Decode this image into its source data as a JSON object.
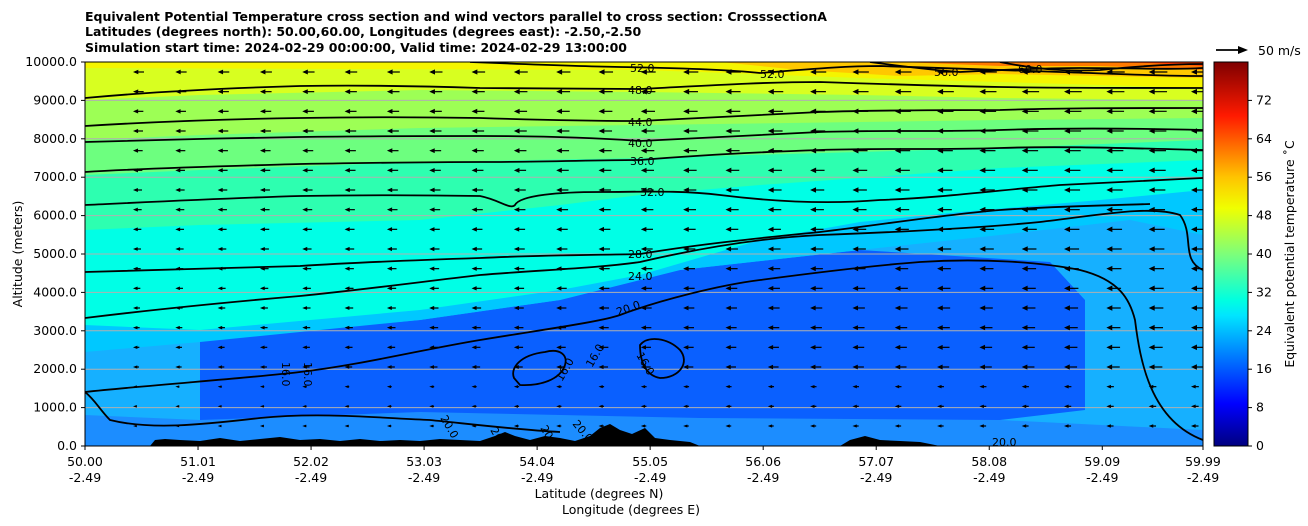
{
  "chart_data": {
    "type": "contour-cross-section",
    "title_lines": [
      "Equivalent Potential Temperature cross section and wind vectors parallel to cross section: CrosssectionA",
      "Latitudes (degrees north): 50.00,60.00, Longitudes (degrees east): -2.50,-2.50",
      "Simulation start time: 2024-02-29 00:00:00, Valid time: 2024-02-29 13:00:00"
    ],
    "xlabel_lat": "Latitude (degrees N)",
    "xlabel_lon": "Longitude (degrees E)",
    "ylabel": "Altitude (meters)",
    "xlim": [
      50.0,
      59.99
    ],
    "ylim": [
      0,
      10000
    ],
    "x_ticks": [
      {
        "lat": "50.00",
        "lon": "-2.49",
        "value": 50.0
      },
      {
        "lat": "51.01",
        "lon": "-2.49",
        "value": 51.01
      },
      {
        "lat": "52.02",
        "lon": "-2.49",
        "value": 52.02
      },
      {
        "lat": "53.03",
        "lon": "-2.49",
        "value": 53.03
      },
      {
        "lat": "54.04",
        "lon": "-2.49",
        "value": 54.04
      },
      {
        "lat": "55.05",
        "lon": "-2.49",
        "value": 55.05
      },
      {
        "lat": "56.06",
        "lon": "-2.49",
        "value": 56.06
      },
      {
        "lat": "57.07",
        "lon": "-2.49",
        "value": 57.07
      },
      {
        "lat": "58.08",
        "lon": "-2.49",
        "value": 58.08
      },
      {
        "lat": "59.09",
        "lon": "-2.49",
        "value": 59.09
      },
      {
        "lat": "59.99",
        "lon": "-2.49",
        "value": 59.99
      }
    ],
    "y_ticks": [
      "0.0",
      "1000.0",
      "2000.0",
      "3000.0",
      "4000.0",
      "5000.0",
      "6000.0",
      "7000.0",
      "8000.0",
      "9000.0",
      "10000.0"
    ],
    "grid": "horizontal",
    "colorbar": {
      "label": "Equivalent potential temperature ˚C",
      "range": [
        0,
        80
      ],
      "ticks": [
        "0",
        "8",
        "16",
        "24",
        "32",
        "40",
        "48",
        "56",
        "64",
        "72"
      ],
      "colormap": "jet"
    },
    "quiver_key": {
      "label": "50 m/s",
      "value": 50
    },
    "contours": [
      {
        "label": "16.0",
        "value": 16
      },
      {
        "label": "20.0",
        "value": 20
      },
      {
        "label": "24.0",
        "value": 24
      },
      {
        "label": "28.0",
        "value": 28
      },
      {
        "label": "32.0",
        "value": 32
      },
      {
        "label": "36.0",
        "value": 36
      },
      {
        "label": "40.0",
        "value": 40
      },
      {
        "label": "44.0",
        "value": 44
      },
      {
        "label": "48.0",
        "value": 48
      },
      {
        "label": "52.0",
        "value": 52
      },
      {
        "label": "56.0",
        "value": 56
      },
      {
        "label": "60.0",
        "value": 60
      }
    ],
    "terrain_color": "#000000"
  }
}
